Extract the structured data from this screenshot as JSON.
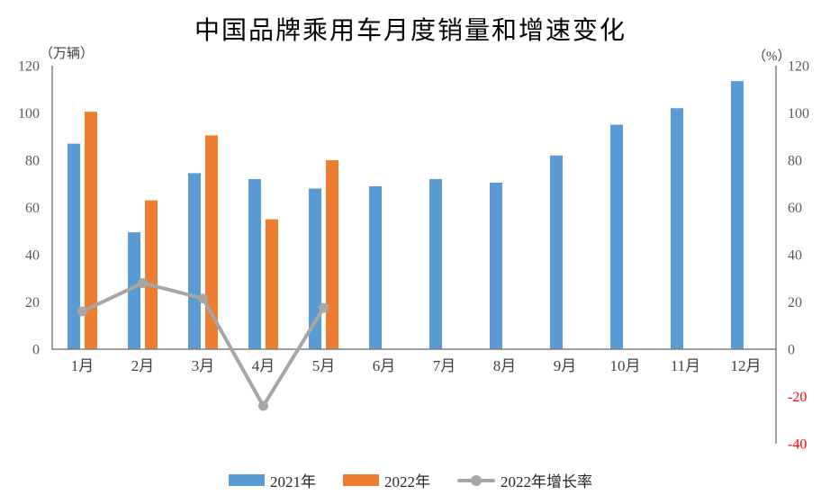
{
  "chart": {
    "title": "中国品牌乘用车月度销量和增速变化"
  },
  "chart_data": {
    "type": "combo-bar-line",
    "title": "中国品牌乘用车月度销量和增速变化",
    "categories": [
      "1月",
      "2月",
      "3月",
      "4月",
      "5月",
      "6月",
      "7月",
      "8月",
      "9月",
      "10月",
      "11月",
      "12月"
    ],
    "left_axis": {
      "unit": "（万辆）",
      "min": 0,
      "max": 120,
      "tick_step": 20,
      "ticks": [
        0,
        20,
        40,
        60,
        80,
        100,
        120
      ]
    },
    "right_axis": {
      "unit": "（%）",
      "min": -40,
      "max": 120,
      "tick_step": 20,
      "ticks": [
        120,
        100,
        80,
        60,
        40,
        20,
        0,
        -20,
        -40
      ]
    },
    "series": [
      {
        "name": "2021年",
        "type": "bar",
        "axis": "left",
        "color": "#5B9BD5",
        "values": [
          87,
          49.5,
          74.5,
          72,
          68,
          69,
          72,
          70.5,
          82,
          95,
          102,
          113.5
        ]
      },
      {
        "name": "2022年",
        "type": "bar",
        "axis": "left",
        "color": "#ED7D31",
        "values": [
          100.5,
          63,
          90.5,
          55,
          80,
          null,
          null,
          null,
          null,
          null,
          null,
          null
        ]
      },
      {
        "name": "2022年增长率",
        "type": "line",
        "axis": "right",
        "color": "#A6A6A6",
        "values": [
          16,
          28,
          21.5,
          -24,
          17.5,
          null,
          null,
          null,
          null,
          null,
          null,
          null
        ]
      }
    ],
    "legend_position": "bottom",
    "grid": false,
    "colors": {
      "axis_line": "#808080",
      "tick_label": "#595959",
      "negative_tick_label": "#FF0000",
      "category_label": "#404040"
    }
  }
}
